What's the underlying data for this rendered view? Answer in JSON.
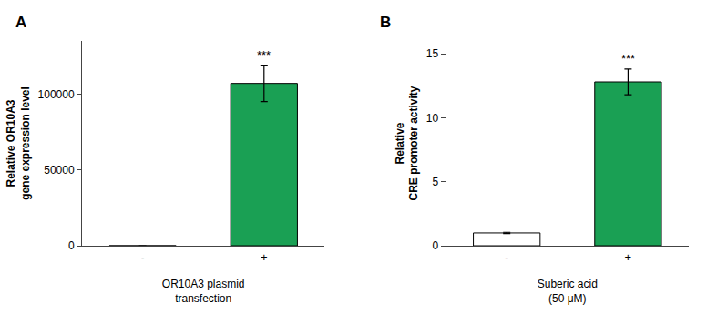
{
  "chart_data": [
    {
      "type": "bar",
      "title": "A",
      "categories": [
        "-",
        "+"
      ],
      "values": [
        0,
        107000
      ],
      "errors": [
        0,
        12000
      ],
      "colors": [
        "#ffffff",
        "#1aa054"
      ],
      "ylabel": "Relative OR10A3\ngene expression level",
      "xlabel": "OR10A3 plasmid\ntransfection",
      "ylim": [
        0,
        135000
      ],
      "yticks": [
        0,
        50000,
        100000
      ],
      "grid": false,
      "annotations": [
        {
          "category": "+",
          "text": "***"
        }
      ]
    },
    {
      "type": "bar",
      "title": "B",
      "categories": [
        "-",
        "+"
      ],
      "values": [
        1.0,
        12.8
      ],
      "errors": [
        0.05,
        1.0
      ],
      "colors": [
        "#ffffff",
        "#1aa054"
      ],
      "ylabel": "Relative\nCRE promoter activity",
      "xlabel": "Suberic acid\n(50 μM)",
      "ylim": [
        0,
        16
      ],
      "yticks": [
        0,
        5,
        10,
        15
      ],
      "grid": false,
      "annotations": [
        {
          "category": "+",
          "text": "***"
        }
      ]
    }
  ]
}
